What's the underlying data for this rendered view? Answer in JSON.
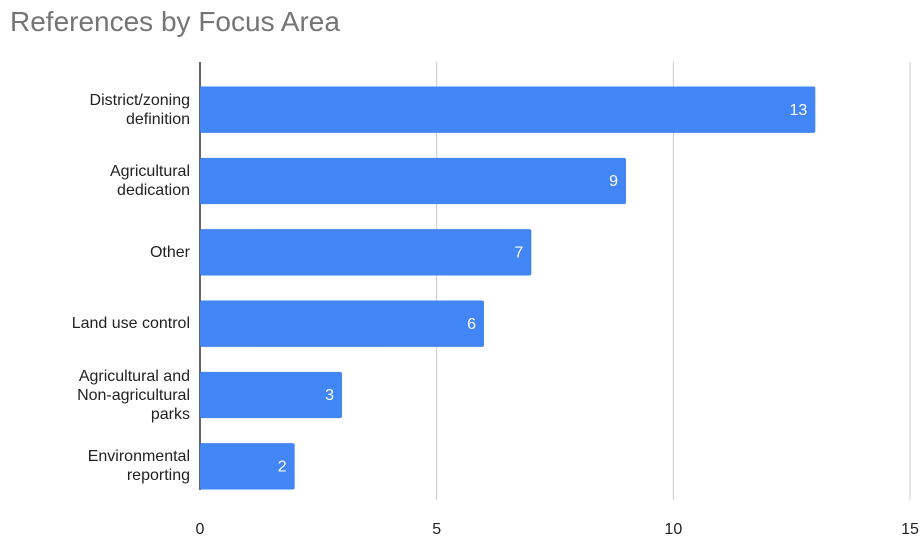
{
  "chart_data": {
    "type": "bar",
    "orientation": "horizontal",
    "title": "References by Focus Area",
    "categories": [
      "District/zoning definition",
      "Agricultural dedication",
      "Other",
      "Land use control",
      "Agricultural and Non-agricultural parks",
      "Environmental reporting"
    ],
    "values": [
      13,
      9,
      7,
      6,
      3,
      2
    ],
    "color": "#4285f4",
    "xlim": [
      0,
      15
    ],
    "xticks": [
      0,
      5,
      10,
      15
    ],
    "grid": true
  }
}
